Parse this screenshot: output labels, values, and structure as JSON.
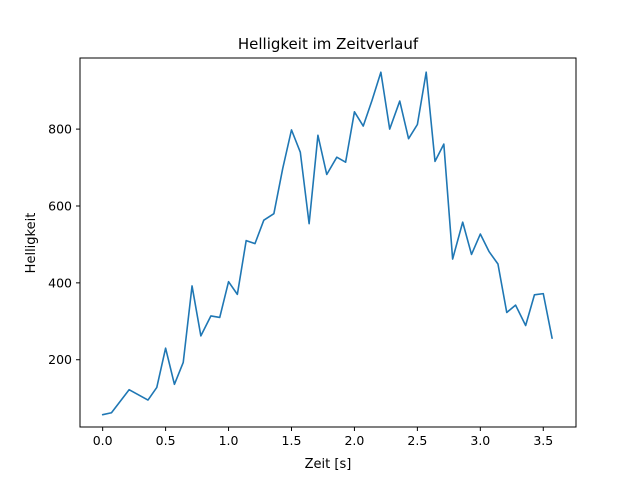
{
  "chart_data": {
    "type": "line",
    "title": "Helligkeit im Zeitverlauf",
    "xlabel": "Zeit [s]",
    "ylabel": "Helligkeit",
    "xlim": [
      -0.18,
      3.76
    ],
    "ylim": [
      25,
      985
    ],
    "xticks": [
      0.0,
      0.5,
      1.0,
      1.5,
      2.0,
      2.5,
      3.0,
      3.5
    ],
    "xtick_labels": [
      "0.0",
      "0.5",
      "1.0",
      "1.5",
      "2.0",
      "2.5",
      "3.0",
      "3.5"
    ],
    "yticks": [
      200,
      400,
      600,
      800
    ],
    "ytick_labels": [
      "200",
      "400",
      "600",
      "800"
    ],
    "grid": false,
    "colors": {
      "line": "#1f77b4"
    },
    "series": [
      {
        "x": [
          0.0,
          0.07,
          0.21,
          0.36,
          0.43,
          0.5,
          0.57,
          0.64,
          0.71,
          0.78,
          0.86,
          0.93,
          1.0,
          1.07,
          1.14,
          1.21,
          1.28,
          1.36,
          1.43,
          1.5,
          1.57,
          1.64,
          1.71,
          1.78,
          1.86,
          1.93,
          2.0,
          2.07,
          2.14,
          2.21,
          2.28,
          2.36,
          2.43,
          2.5,
          2.57,
          2.64,
          2.71,
          2.78,
          2.86,
          2.93,
          3.0,
          3.07,
          3.14,
          3.21,
          3.28,
          3.36,
          3.43,
          3.5,
          3.57
        ],
        "y": [
          57,
          62,
          122,
          95,
          128,
          230,
          136,
          193,
          392,
          262,
          314,
          310,
          403,
          370,
          510,
          502,
          563,
          580,
          697,
          798,
          740,
          554,
          784,
          682,
          727,
          714,
          845,
          808,
          875,
          948,
          800,
          873,
          775,
          812,
          948,
          716,
          761,
          462,
          558,
          474,
          527,
          481,
          449,
          323,
          342,
          289,
          369,
          372,
          256
        ]
      }
    ]
  }
}
